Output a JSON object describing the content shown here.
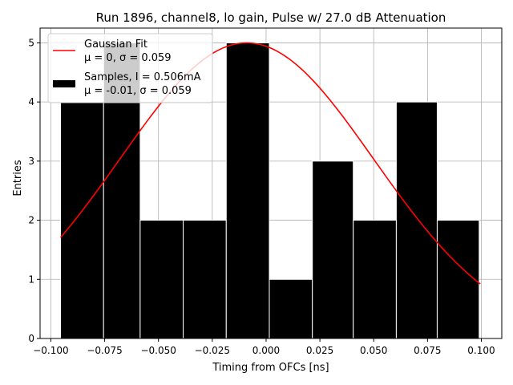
{
  "chart_data": {
    "type": "bar",
    "title": "Run 1896, channel8, lo gain, Pulse w/ 27.0 dB Attenuation",
    "xlabel": "Timing from OFCs [ns]",
    "ylabel": "Entries",
    "xlim": [
      -0.105,
      0.1095
    ],
    "ylim": [
      0,
      5.25
    ],
    "grid": true,
    "legend_position": "top-left",
    "x_ticks": [
      -0.1,
      -0.075,
      -0.05,
      -0.025,
      0.0,
      0.025,
      0.05,
      0.075,
      0.1
    ],
    "x_tick_labels": [
      "−0.100",
      "−0.075",
      "−0.050",
      "−0.025",
      "0.000",
      "0.025",
      "0.050",
      "0.075",
      "0.100"
    ],
    "y_ticks": [
      0,
      1,
      2,
      3,
      4,
      5
    ],
    "y_tick_labels": [
      "0",
      "1",
      "2",
      "3",
      "4",
      "5"
    ],
    "histogram": {
      "name": "Samples, I = 0.506mA",
      "stats": "μ = -0.01, σ = 0.059",
      "color": "#000000",
      "edge_color": "#ffffff",
      "bin_edges": [
        -0.0955,
        -0.0755,
        -0.0585,
        -0.0385,
        -0.0185,
        0.0015,
        0.0215,
        0.0405,
        0.0605,
        0.0795,
        0.099
      ],
      "counts": [
        4,
        5,
        2,
        2,
        5,
        1,
        3,
        2,
        4,
        2
      ]
    },
    "fit": {
      "name": "Gaussian Fit",
      "stats": "μ = 0, σ = 0.059",
      "color": "#ff0000",
      "mu": -0.009,
      "sigma": 0.059,
      "amplitude": 5.0,
      "x_range": [
        -0.0955,
        0.0995
      ]
    }
  }
}
